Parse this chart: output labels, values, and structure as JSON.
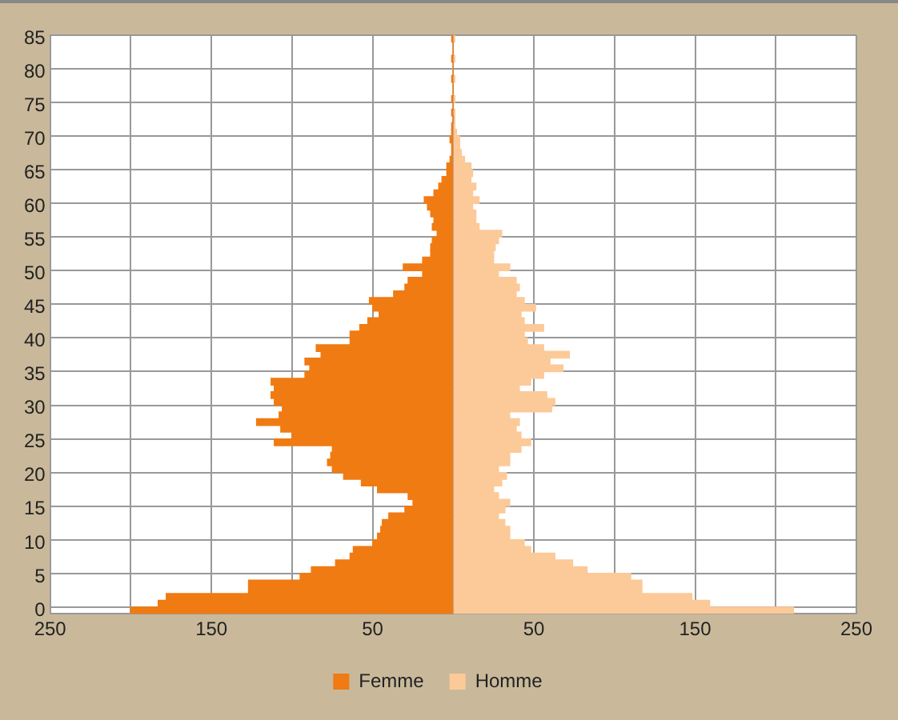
{
  "chart_data": {
    "type": "bar",
    "orientation": "horizontal",
    "stacked": true,
    "categories": [
      "85",
      null,
      null,
      null,
      null,
      "80",
      null,
      null,
      null,
      null,
      "75",
      null,
      null,
      null,
      null,
      "70",
      null,
      null,
      null,
      null,
      "65",
      null,
      null,
      null,
      null,
      "60",
      null,
      null,
      null,
      null,
      "55",
      null,
      null,
      null,
      null,
      "50",
      null,
      null,
      null,
      null,
      "45",
      null,
      null,
      null,
      null,
      "40",
      null,
      null,
      null,
      null,
      "35",
      null,
      null,
      null,
      null,
      "30",
      null,
      null,
      null,
      null,
      "25",
      null,
      null,
      null,
      null,
      "20",
      null,
      null,
      null,
      null,
      "15",
      null,
      null,
      null,
      null,
      "10",
      null,
      null,
      null,
      null,
      "5",
      null,
      null,
      null,
      null,
      "0"
    ],
    "series": [
      {
        "name": "Femme",
        "color": "#f07b12",
        "values": [
          -1,
          0,
          0,
          -1,
          0,
          0,
          -1,
          0,
          0,
          -1,
          0,
          -1,
          0,
          -1,
          -1,
          -2,
          -1,
          -1,
          -2,
          -4,
          -4,
          -7,
          -9,
          -12,
          -18,
          -16,
          -14,
          -12,
          -13,
          -10,
          -13,
          -14,
          -14,
          -19,
          -31,
          -19,
          -28,
          -30,
          -37,
          -52,
          -50,
          -46,
          -53,
          -58,
          -64,
          -64,
          -85,
          -82,
          -92,
          -89,
          -92,
          -113,
          -111,
          -113,
          -111,
          -106,
          -108,
          -122,
          -107,
          -100,
          -111,
          -75,
          -76,
          -78,
          -75,
          -68,
          -57,
          -47,
          -28,
          -25,
          -30,
          -40,
          -44,
          -45,
          -47,
          -50,
          -62,
          -64,
          -73,
          -88,
          -95,
          -127,
          -127,
          -178,
          -183,
          -200
        ]
      },
      {
        "name": "Homme",
        "color": "#fcc998",
        "values": [
          1,
          0,
          0,
          1,
          0,
          0,
          1,
          0,
          0,
          1,
          0,
          1,
          1,
          1,
          2,
          4,
          4,
          5,
          7,
          11,
          12,
          11,
          14,
          12,
          16,
          12,
          14,
          14,
          16,
          30,
          28,
          26,
          25,
          25,
          35,
          28,
          39,
          41,
          39,
          44,
          51,
          42,
          44,
          56,
          44,
          46,
          56,
          72,
          60,
          68,
          56,
          48,
          41,
          58,
          63,
          61,
          35,
          41,
          39,
          42,
          48,
          42,
          35,
          35,
          28,
          33,
          30,
          25,
          28,
          35,
          32,
          28,
          32,
          35,
          35,
          44,
          48,
          63,
          74,
          83,
          110,
          117,
          117,
          148,
          159,
          211
        ]
      }
    ],
    "xlim": [
      -250,
      250
    ],
    "xticks": [
      {
        "value": -250,
        "label": "250"
      },
      {
        "value": -200,
        "label": null
      },
      {
        "value": -150,
        "label": "150"
      },
      {
        "value": -100,
        "label": null
      },
      {
        "value": -50,
        "label": "50"
      },
      {
        "value": 0,
        "label": null
      },
      {
        "value": 50,
        "label": "50"
      },
      {
        "value": 100,
        "label": null
      },
      {
        "value": 150,
        "label": "150"
      },
      {
        "value": 200,
        "label": null
      },
      {
        "value": 250,
        "label": "250"
      }
    ],
    "grid": true,
    "legend": "bottom"
  }
}
